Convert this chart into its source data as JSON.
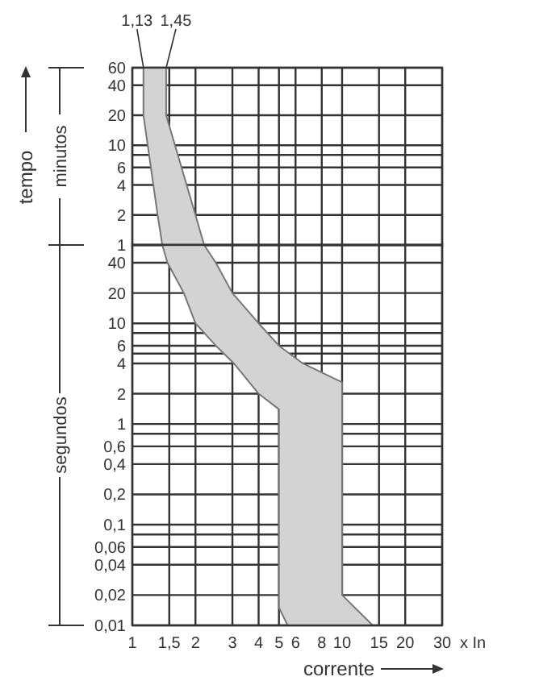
{
  "chart_data": [
    {
      "type": "area",
      "ylabel": "tempo",
      "log": "xy",
      "grid": true,
      "tick_labels": "y",
      "line_style": "solid",
      "xlim": [
        1,
        30
      ],
      "ylim": [
        1,
        60
      ],
      "xticks": [
        {
          "value": 1,
          "label": null
        },
        {
          "value": 1.5,
          "label": null
        },
        {
          "value": 2,
          "label": null
        },
        {
          "value": 3,
          "label": null
        },
        {
          "value": 4,
          "label": null
        },
        {
          "value": 5,
          "label": null
        },
        {
          "value": 6,
          "label": null
        },
        {
          "value": 8,
          "label": null
        },
        {
          "value": 10,
          "label": null
        },
        {
          "value": 15,
          "label": null
        },
        {
          "value": 20,
          "label": null
        },
        {
          "value": 30,
          "label": null
        }
      ],
      "yticks": [
        60,
        40,
        20,
        10,
        {
          "value": 8,
          "label": null
        },
        6,
        4,
        2,
        1
      ],
      "series": [
        {
          "color": "#d3d3d3",
          "x": [
            1.13,
            1.13,
            1.32,
            1.39,
            2.2,
            2.0,
            1.45,
            1.45
          ],
          "values": [
            60,
            20,
            2,
            1,
            1,
            2,
            20,
            60
          ]
        }
      ],
      "annotations": [
        {
          "text": "1,13",
          "x": 1.13,
          "y": 60
        },
        {
          "text": "1,45",
          "x": 1.45,
          "y": 60
        },
        "minutos"
      ]
    },
    {
      "type": "area",
      "xlabel": "corrente",
      "log": "xy",
      "grid": true,
      "line_style": "solid",
      "xlim": [
        1,
        30
      ],
      "ylim": [
        0.01,
        60
      ],
      "xticks": [
        1,
        {
          "value": 1.5,
          "label": "1,5"
        },
        2,
        3,
        4,
        5,
        6,
        8,
        10,
        15,
        20,
        30
      ],
      "yticks": [
        {
          "value": 60,
          "label": null
        },
        40,
        20,
        10,
        {
          "value": 8,
          "label": null
        },
        6,
        {
          "value": 5,
          "label": null
        },
        4,
        2,
        1,
        {
          "value": 0.8,
          "label": null
        },
        {
          "value": 0.6,
          "label": "0,6"
        },
        {
          "value": 0.4,
          "label": "0,4"
        },
        {
          "value": 0.2,
          "label": "0,2"
        },
        {
          "value": 0.1,
          "label": "0,1"
        },
        {
          "value": 0.08,
          "label": null
        },
        {
          "value": 0.06,
          "label": "0,06"
        },
        {
          "value": 0.04,
          "label": "0,04"
        },
        {
          "value": 0.02,
          "label": "0,02"
        },
        {
          "value": 0.01,
          "label": "0,01"
        }
      ],
      "series": [
        {
          "color": "#d3d3d3",
          "x": [
            1.39,
            1.47,
            1.76,
            2.0,
            2.5,
            3.05,
            4.0,
            5.0,
            5.0,
            5.5,
            14,
            10,
            10,
            6.5,
            5.0,
            4.0,
            3.0,
            2.5,
            2.2
          ],
          "values": [
            60,
            40,
            20,
            10,
            6,
            4,
            2,
            1.4,
            0.015,
            0.01,
            0.01,
            0.02,
            2.6,
            4,
            6,
            10,
            20,
            40,
            60
          ]
        }
      ],
      "annotations": [
        "segundos",
        "x In"
      ]
    }
  ]
}
